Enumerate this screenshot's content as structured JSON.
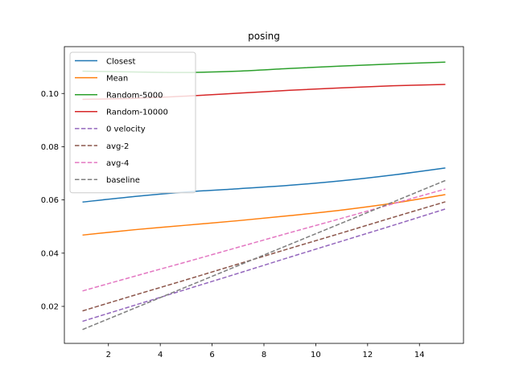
{
  "chart_data": {
    "type": "line",
    "title": "posing",
    "xlabel": "",
    "ylabel": "",
    "xlim": [
      0.3,
      15.7
    ],
    "ylim": [
      0.0061,
      0.1176
    ],
    "xticks": [
      2,
      4,
      6,
      8,
      10,
      12,
      14
    ],
    "yticks": [
      0.02,
      0.04,
      0.06,
      0.08,
      0.1
    ],
    "ytick_labels": [
      "0.02",
      "0.04",
      "0.06",
      "0.08",
      "0.10"
    ],
    "grid": false,
    "legend_position": "upper left",
    "x": [
      1,
      3,
      5,
      7,
      9,
      11,
      13,
      15
    ],
    "series": [
      {
        "name": "Closest",
        "color": "#1f77b4",
        "style": "solid",
        "values": [
          0.0592,
          0.0613,
          0.063,
          0.0642,
          0.0655,
          0.0672,
          0.0694,
          0.072
        ]
      },
      {
        "name": "Mean",
        "color": "#ff7f0e",
        "style": "solid",
        "values": [
          0.0468,
          0.0488,
          0.0505,
          0.0522,
          0.0541,
          0.0562,
          0.0588,
          0.062
        ]
      },
      {
        "name": "Random-5000",
        "color": "#2ca02c",
        "style": "solid",
        "values": [
          0.1084,
          0.1081,
          0.1079,
          0.1084,
          0.1094,
          0.1103,
          0.1111,
          0.1118
        ]
      },
      {
        "name": "Random-10000",
        "color": "#d62728",
        "style": "solid",
        "values": [
          0.0978,
          0.0982,
          0.099,
          0.1001,
          0.1012,
          0.1021,
          0.1029,
          0.1034
        ]
      },
      {
        "name": "0 velocity",
        "color": "#9467bd",
        "style": "dashed",
        "values": [
          0.0144,
          0.0204,
          0.0264,
          0.0324,
          0.0385,
          0.0445,
          0.0505,
          0.0566
        ]
      },
      {
        "name": "avg-2",
        "color": "#8c564b",
        "style": "dashed",
        "values": [
          0.0183,
          0.0242,
          0.03,
          0.0359,
          0.0418,
          0.0476,
          0.0535,
          0.0593
        ]
      },
      {
        "name": "avg-4",
        "color": "#e377c2",
        "style": "dashed",
        "values": [
          0.0258,
          0.0313,
          0.0367,
          0.0422,
          0.0477,
          0.0531,
          0.0586,
          0.0641
        ]
      },
      {
        "name": "baseline",
        "color": "#7f7f7f",
        "style": "dashed",
        "values": [
          0.0113,
          0.0193,
          0.0273,
          0.0353,
          0.0433,
          0.0513,
          0.0593,
          0.0673
        ]
      }
    ]
  }
}
